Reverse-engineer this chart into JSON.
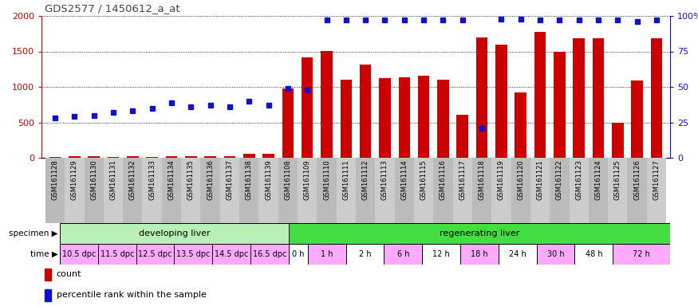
{
  "title": "GDS2577 / 1450612_a_at",
  "samples": [
    "GSM161128",
    "GSM161129",
    "GSM161130",
    "GSM161131",
    "GSM161132",
    "GSM161133",
    "GSM161134",
    "GSM161135",
    "GSM161136",
    "GSM161137",
    "GSM161138",
    "GSM161139",
    "GSM161108",
    "GSM161109",
    "GSM161110",
    "GSM161111",
    "GSM161112",
    "GSM161113",
    "GSM161114",
    "GSM161115",
    "GSM161116",
    "GSM161117",
    "GSM161118",
    "GSM161119",
    "GSM161120",
    "GSM161121",
    "GSM161122",
    "GSM161123",
    "GSM161124",
    "GSM161125",
    "GSM161126",
    "GSM161127"
  ],
  "counts": [
    15,
    20,
    20,
    12,
    18,
    16,
    20,
    18,
    20,
    20,
    60,
    60,
    975,
    1420,
    1510,
    1100,
    1310,
    1120,
    1130,
    1155,
    1100,
    610,
    1700,
    1600,
    920,
    1770,
    1490,
    1680,
    1680,
    490,
    1090,
    1690
  ],
  "percentiles_pct": [
    28,
    29,
    30,
    32,
    33,
    35,
    39,
    36,
    37,
    36,
    40,
    37,
    49,
    48,
    97,
    97,
    97,
    97,
    97,
    97,
    97,
    97,
    21,
    98,
    98,
    97,
    97,
    97,
    97,
    97,
    96,
    97
  ],
  "specimen_groups": [
    {
      "label": "developing liver",
      "start": 0,
      "end": 12,
      "color": "#b8f0b8"
    },
    {
      "label": "regenerating liver",
      "start": 12,
      "end": 32,
      "color": "#44dd44"
    }
  ],
  "time_groups": [
    {
      "label": "10.5 dpc",
      "start": 0,
      "end": 2
    },
    {
      "label": "11.5 dpc",
      "start": 2,
      "end": 4
    },
    {
      "label": "12.5 dpc",
      "start": 4,
      "end": 6
    },
    {
      "label": "13.5 dpc",
      "start": 6,
      "end": 8
    },
    {
      "label": "14.5 dpc",
      "start": 8,
      "end": 10
    },
    {
      "label": "16.5 dpc",
      "start": 10,
      "end": 12
    },
    {
      "label": "0 h",
      "start": 12,
      "end": 13
    },
    {
      "label": "1 h",
      "start": 13,
      "end": 15
    },
    {
      "label": "2 h",
      "start": 15,
      "end": 17
    },
    {
      "label": "6 h",
      "start": 17,
      "end": 19
    },
    {
      "label": "12 h",
      "start": 19,
      "end": 21
    },
    {
      "label": "18 h",
      "start": 21,
      "end": 23
    },
    {
      "label": "24 h",
      "start": 23,
      "end": 25
    },
    {
      "label": "30 h",
      "start": 25,
      "end": 27
    },
    {
      "label": "48 h",
      "start": 27,
      "end": 29
    },
    {
      "label": "72 h",
      "start": 29,
      "end": 32
    }
  ],
  "time_colors": [
    "#ffaaff",
    "#ffaaff",
    "#ffaaff",
    "#ffaaff",
    "#ffaaff",
    "#ffaaff",
    "#ffffff",
    "#ffaaff",
    "#ffffff",
    "#ffaaff",
    "#ffffff",
    "#ffaaff",
    "#ffffff",
    "#ffaaff",
    "#ffffff",
    "#ffaaff"
  ],
  "ylim": 2000,
  "bar_color": "#cc0000",
  "dot_color": "#1111cc",
  "bg_color": "#ffffff",
  "left_axis_color": "#cc0000",
  "right_axis_color": "#1111cc",
  "label_bg": "#cccccc",
  "title_color": "#444444"
}
